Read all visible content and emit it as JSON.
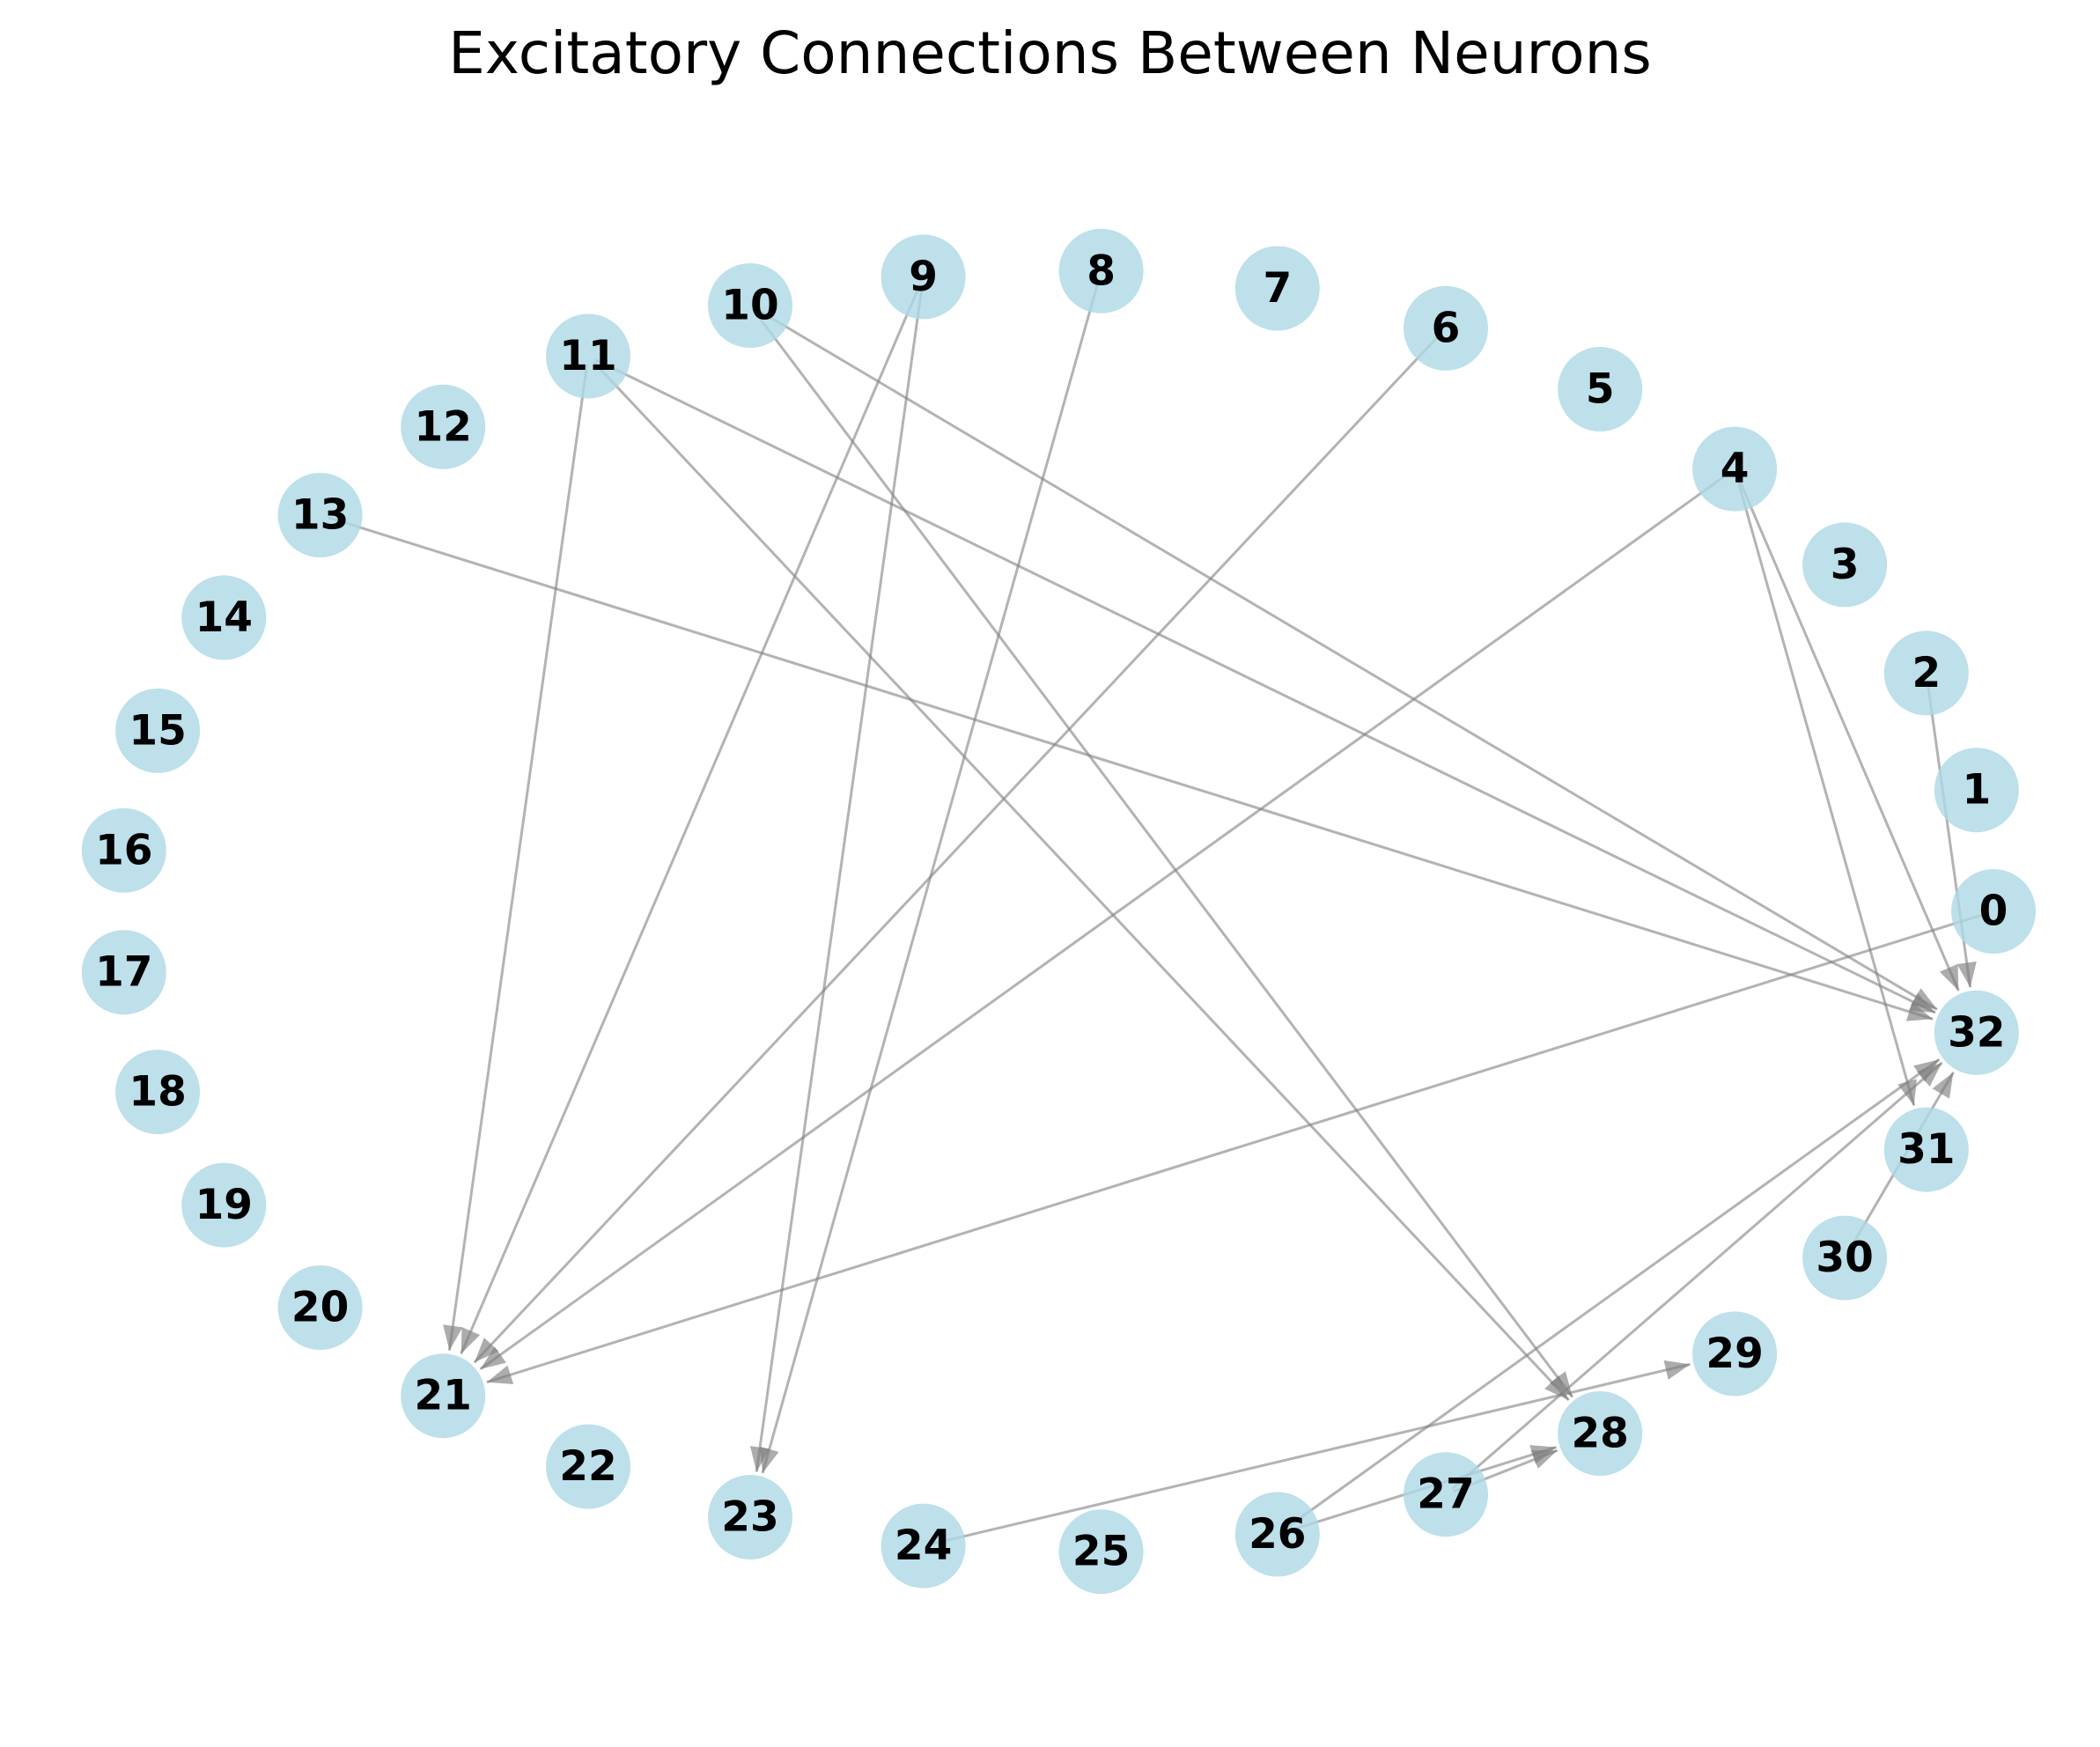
{
  "title": "Excitatory Connections Between Neurons",
  "colors": {
    "node_fill": "#add8e6",
    "edge": "#808080",
    "label": "#000000",
    "background": "#ffffff"
  },
  "graph": {
    "type": "directed",
    "layout": "circular",
    "nodes": [
      "0",
      "1",
      "2",
      "3",
      "4",
      "5",
      "6",
      "7",
      "8",
      "9",
      "10",
      "11",
      "12",
      "13",
      "14",
      "15",
      "16",
      "17",
      "18",
      "19",
      "20",
      "21",
      "22",
      "23",
      "24",
      "25",
      "26",
      "27",
      "28",
      "29",
      "30",
      "31",
      "32"
    ],
    "edges": [
      {
        "source": "0",
        "target": "21"
      },
      {
        "source": "2",
        "target": "32"
      },
      {
        "source": "4",
        "target": "21"
      },
      {
        "source": "4",
        "target": "31"
      },
      {
        "source": "4",
        "target": "32"
      },
      {
        "source": "6",
        "target": "21"
      },
      {
        "source": "8",
        "target": "23"
      },
      {
        "source": "9",
        "target": "21"
      },
      {
        "source": "9",
        "target": "23"
      },
      {
        "source": "10",
        "target": "28"
      },
      {
        "source": "10",
        "target": "32"
      },
      {
        "source": "11",
        "target": "21"
      },
      {
        "source": "11",
        "target": "28"
      },
      {
        "source": "11",
        "target": "32"
      },
      {
        "source": "13",
        "target": "32"
      },
      {
        "source": "24",
        "target": "29"
      },
      {
        "source": "26",
        "target": "28"
      },
      {
        "source": "26",
        "target": "32"
      },
      {
        "source": "27",
        "target": "28"
      },
      {
        "source": "27",
        "target": "32"
      },
      {
        "source": "30",
        "target": "32"
      }
    ]
  }
}
